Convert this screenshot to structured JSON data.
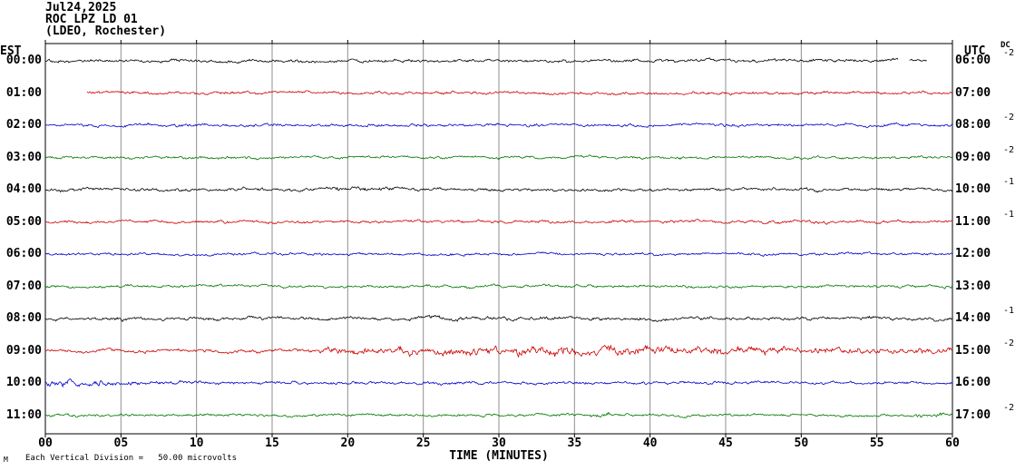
{
  "header": {
    "date": "Jul24,2025",
    "station": "ROC LPZ LD 01",
    "network": "(LDEO, Rochester)"
  },
  "labels": {
    "left_tz": "EST",
    "right_tz": "UTC",
    "dc_col": "DC",
    "xlabel": "TIME (MINUTES)"
  },
  "footer": {
    "marker": "M",
    "scale_label": "Each Vertical Division =   50.00 microvolts"
  },
  "chart_data": {
    "type": "line",
    "subtype": "helicorder-seismogram",
    "title": "ROC LPZ LD 01 (LDEO, Rochester) Jul24,2025",
    "xlabel": "TIME (MINUTES)",
    "x_unit": "minutes",
    "x_range": [
      0,
      60
    ],
    "x_tick_interval_min": 5,
    "x_ticks": [
      "00",
      "05",
      "10",
      "15",
      "20",
      "25",
      "30",
      "35",
      "40",
      "45",
      "50",
      "55",
      "60"
    ],
    "vertical_division_microvolts": 50.0,
    "grid_color": "#8f8f8f",
    "border_color": "#000000",
    "trace_colors_cycle": [
      "#000000",
      "#cc0000",
      "#0000cc",
      "#007700"
    ],
    "rows": [
      {
        "est": "00:00",
        "utc": "06:00",
        "dc": "-2",
        "color": "#000000",
        "amplitude_segments": [
          [
            0,
            56.4,
            1.7
          ],
          [
            56.4,
            57.1,
            null
          ],
          [
            57.1,
            58.3,
            1.4
          ],
          [
            58.3,
            60,
            null
          ]
        ]
      },
      {
        "est": "01:00",
        "utc": "07:00",
        "dc": "",
        "color": "#cc0000",
        "amplitude_segments": [
          [
            0,
            2.7,
            null
          ],
          [
            2.7,
            60,
            1.6
          ]
        ]
      },
      {
        "est": "02:00",
        "utc": "08:00",
        "dc": "-2",
        "color": "#0000cc",
        "amplitude_segments": [
          [
            0,
            60,
            1.6
          ]
        ]
      },
      {
        "est": "03:00",
        "utc": "09:00",
        "dc": "-2",
        "color": "#007700",
        "amplitude_segments": [
          [
            0,
            60,
            1.5
          ]
        ]
      },
      {
        "est": "04:00",
        "utc": "10:00",
        "dc": "-1",
        "color": "#000000",
        "amplitude_segments": [
          [
            0,
            19,
            1.7
          ],
          [
            19,
            23,
            2.5
          ],
          [
            23,
            60,
            1.7
          ]
        ]
      },
      {
        "est": "05:00",
        "utc": "11:00",
        "dc": "-1",
        "color": "#cc0000",
        "amplitude_segments": [
          [
            0,
            60,
            1.6
          ]
        ]
      },
      {
        "est": "06:00",
        "utc": "12:00",
        "dc": "",
        "color": "#0000cc",
        "amplitude_segments": [
          [
            0,
            60,
            1.4
          ]
        ]
      },
      {
        "est": "07:00",
        "utc": "13:00",
        "dc": "",
        "color": "#007700",
        "amplitude_segments": [
          [
            0,
            60,
            1.5
          ]
        ]
      },
      {
        "est": "08:00",
        "utc": "14:00",
        "dc": "-1",
        "color": "#000000",
        "amplitude_segments": [
          [
            0,
            24,
            1.8
          ],
          [
            24,
            34,
            2.2
          ],
          [
            34,
            60,
            1.8
          ]
        ]
      },
      {
        "est": "09:00",
        "utc": "15:00",
        "dc": "-2",
        "color": "#cc0000",
        "amplitude_segments": [
          [
            0,
            18,
            1.8
          ],
          [
            18,
            21,
            3.2
          ],
          [
            21,
            25,
            4.0
          ],
          [
            25,
            30,
            4.6
          ],
          [
            30,
            36,
            5.0
          ],
          [
            36,
            42,
            4.8
          ],
          [
            42,
            48,
            4.2
          ],
          [
            48,
            54,
            3.6
          ],
          [
            54,
            60,
            3.0
          ]
        ]
      },
      {
        "est": "10:00",
        "utc": "16:00",
        "dc": "",
        "color": "#0000cc",
        "amplitude_segments": [
          [
            0,
            1.5,
            4.2
          ],
          [
            1.5,
            4,
            3.4
          ],
          [
            4,
            8,
            2.4
          ],
          [
            8,
            12,
            1.9
          ],
          [
            12,
            60,
            1.6
          ]
        ]
      },
      {
        "est": "11:00",
        "utc": "17:00",
        "dc": "-2",
        "color": "#007700",
        "amplitude_segments": [
          [
            0,
            36,
            1.5
          ],
          [
            36,
            37.5,
            3.0
          ],
          [
            37.5,
            57.5,
            1.5
          ],
          [
            57.5,
            59.5,
            2.6
          ],
          [
            59.5,
            60,
            1.5
          ]
        ]
      }
    ]
  }
}
